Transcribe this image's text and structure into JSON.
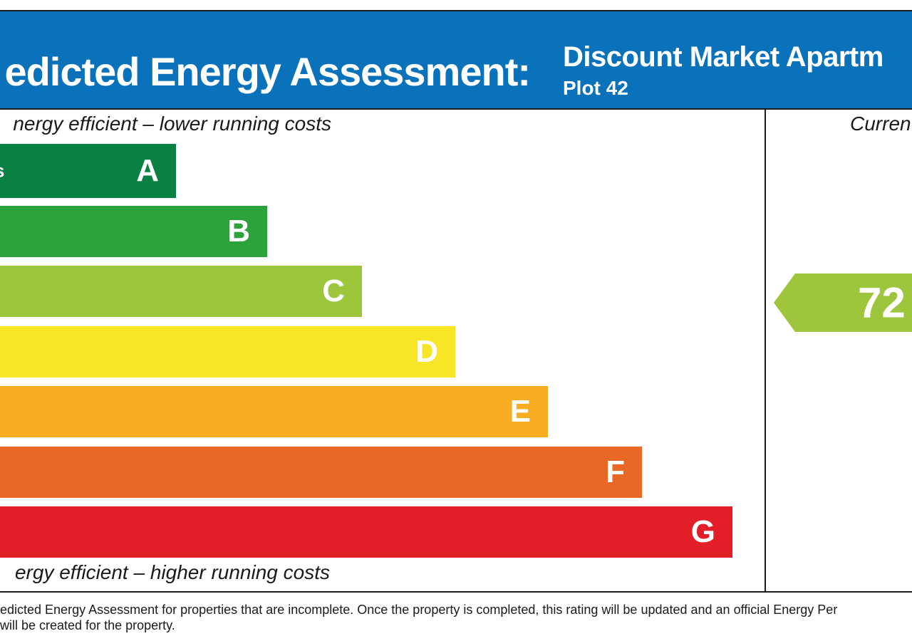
{
  "header": {
    "title": "edicted Energy Assessment:",
    "property": "Discount Market Apartm",
    "plot": "Plot 42",
    "background": "#0a72ba"
  },
  "chart_data": {
    "type": "bar",
    "top_note": "nergy efficient – lower running costs",
    "bottom_note": "ergy efficient – higher running costs",
    "bands": [
      {
        "letter": "A",
        "range": "s",
        "relative_length": 0.24,
        "color": "#0a8142"
      },
      {
        "letter": "B",
        "range": "",
        "relative_length": 0.365,
        "color": "#2ca23b"
      },
      {
        "letter": "C",
        "range": "",
        "relative_length": 0.494,
        "color": "#9dc63c"
      },
      {
        "letter": "D",
        "range": "",
        "relative_length": 0.622,
        "color": "#f7e625"
      },
      {
        "letter": "E",
        "range": "",
        "relative_length": 0.748,
        "color": "#f8ac21"
      },
      {
        "letter": "F",
        "range": "",
        "relative_length": 0.876,
        "color": "#ea6826"
      },
      {
        "letter": "G",
        "range": "",
        "relative_length": 1.0,
        "color": "#e21f26"
      }
    ],
    "current": {
      "label": "Curren",
      "value": "72",
      "band": "C",
      "color": "#9dc63c"
    }
  },
  "footer": {
    "line1": "edicted Energy Assessment for properties that are incomplete. Once the property is completed, this rating will be updated and an official Energy Per",
    "line2": "will be created for the property."
  }
}
